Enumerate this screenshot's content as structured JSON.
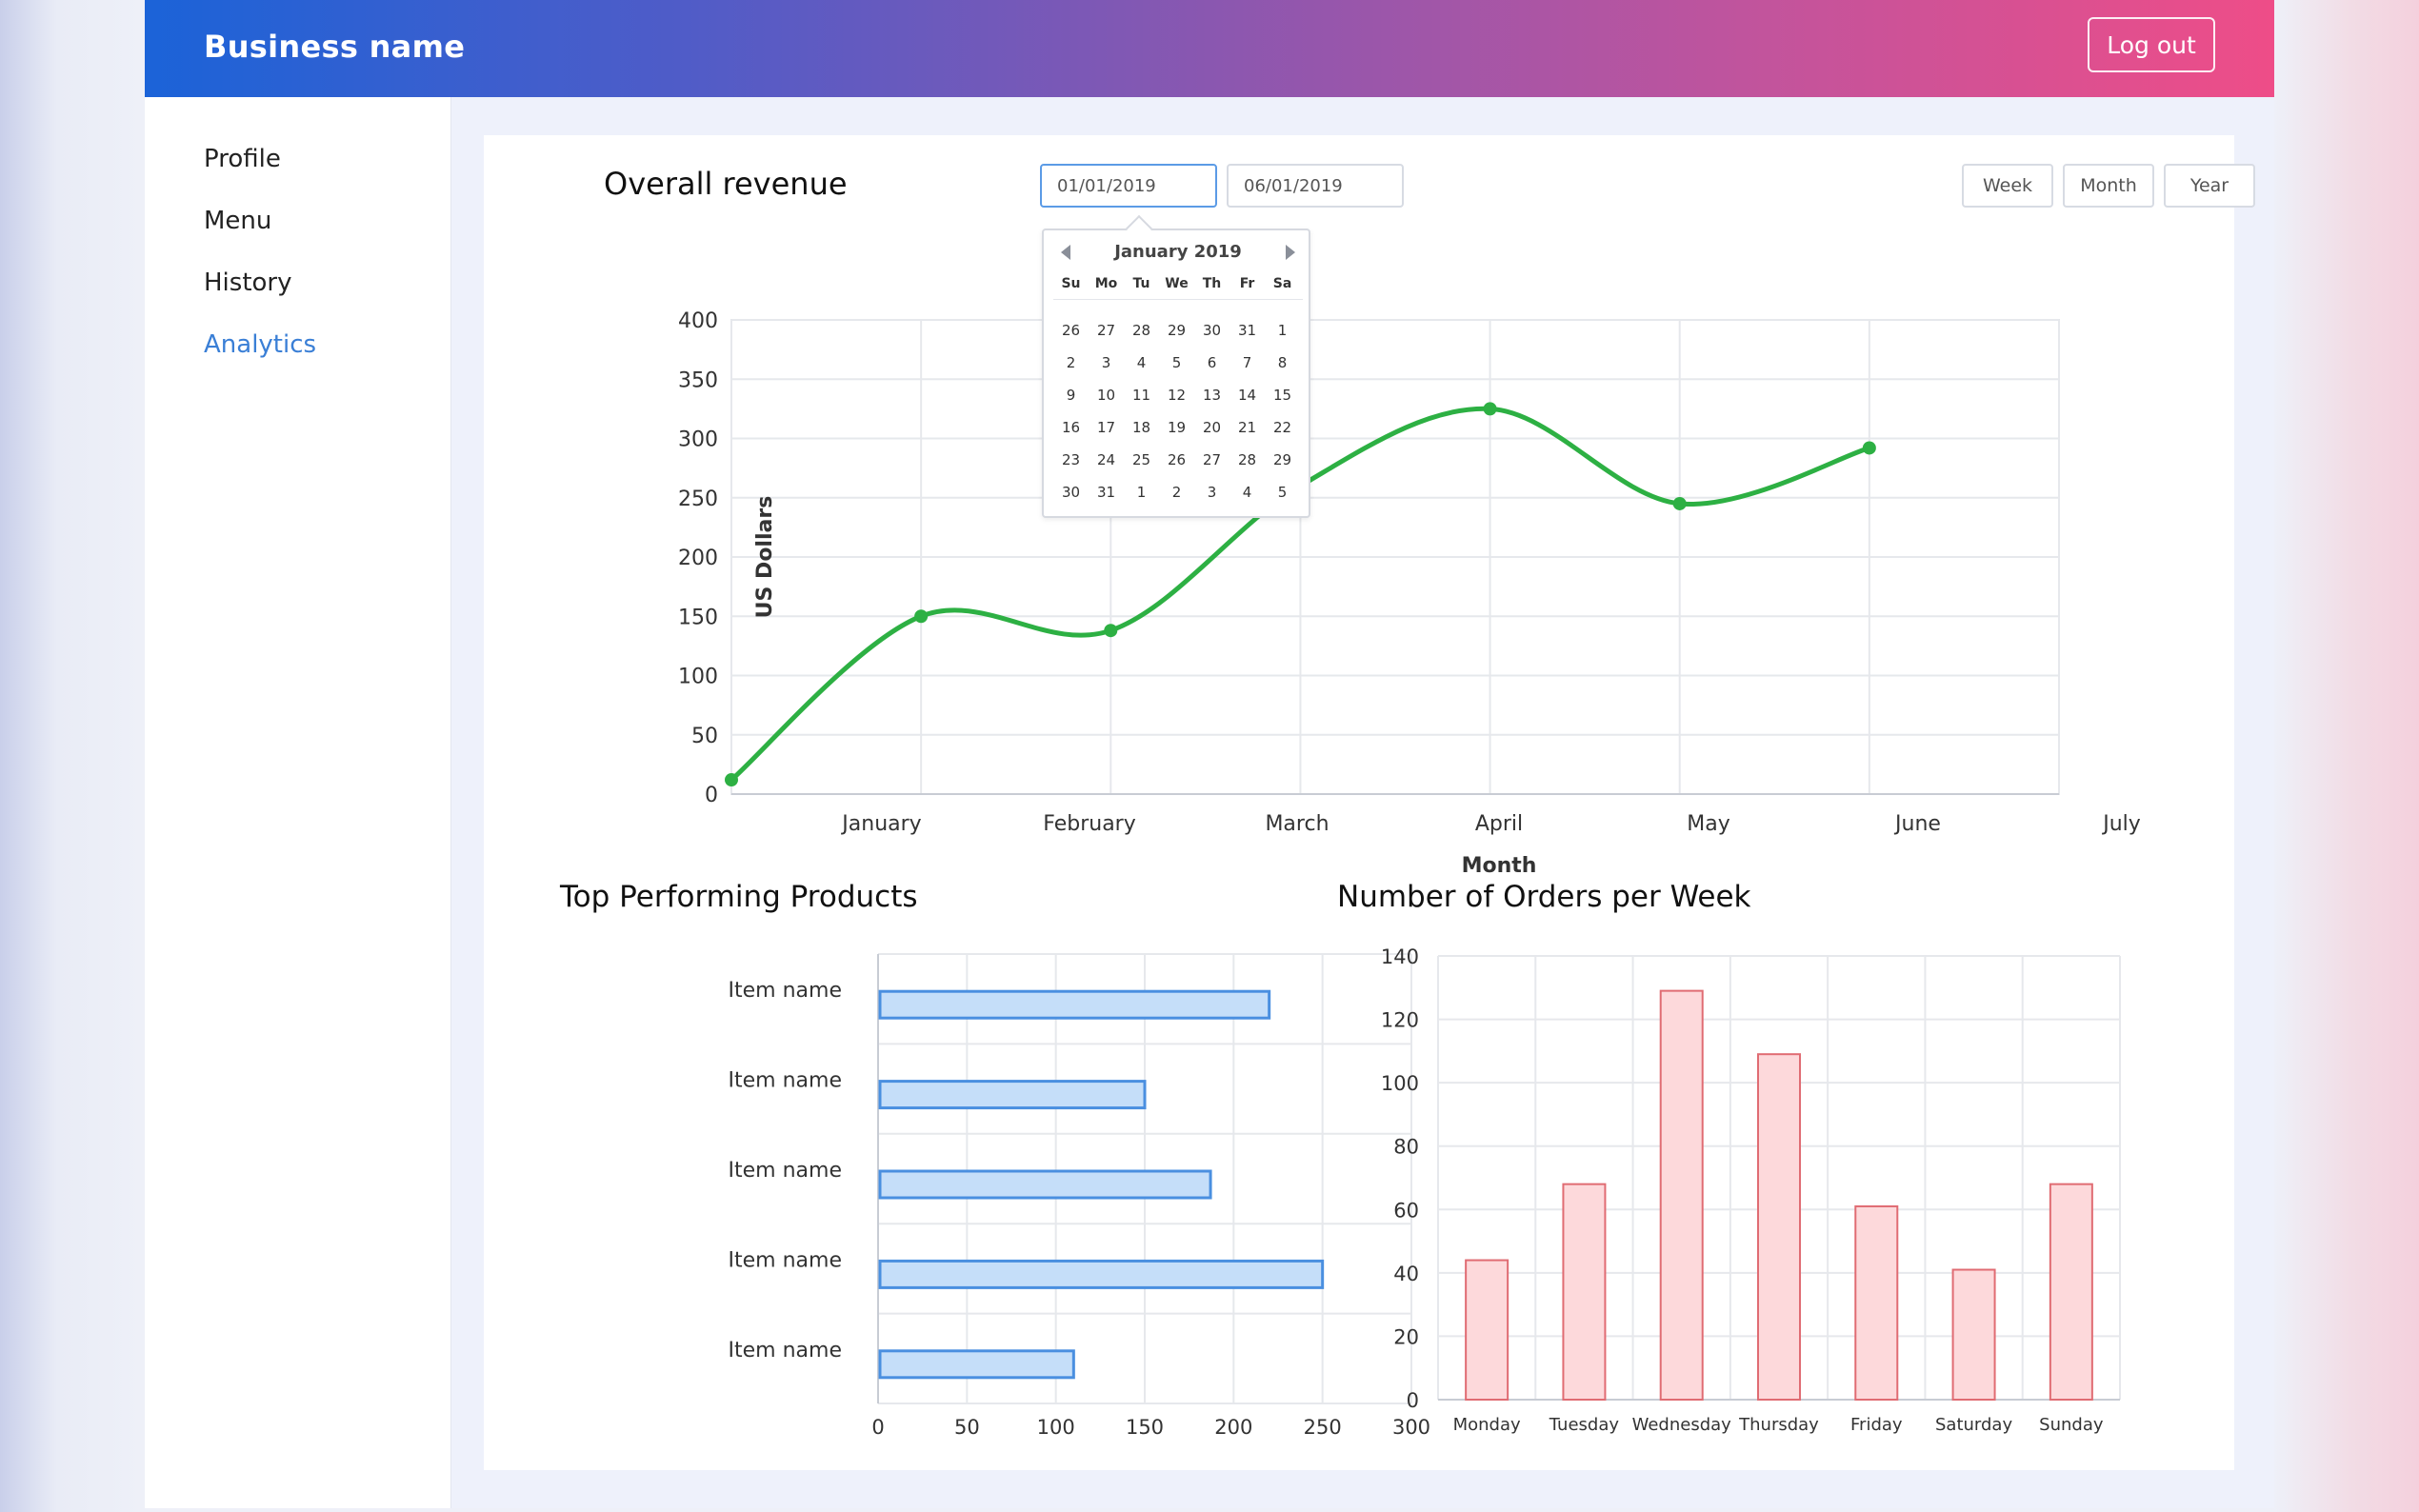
{
  "header": {
    "brand": "Business name",
    "logout_label": "Log out"
  },
  "sidebar": {
    "items": [
      {
        "label": "Profile",
        "active": false
      },
      {
        "label": "Menu",
        "active": false
      },
      {
        "label": "History",
        "active": false
      },
      {
        "label": "Analytics",
        "active": true
      }
    ]
  },
  "revenue": {
    "title": "Overall revenue",
    "date_from": "01/01/2019",
    "date_to": "06/01/2019",
    "range_buttons": [
      "Week",
      "Month",
      "Year"
    ]
  },
  "calendar": {
    "month_label": "January 2019",
    "weekdays": [
      "Su",
      "Mo",
      "Tu",
      "We",
      "Th",
      "Fr",
      "Sa"
    ],
    "weeks": [
      [
        "26",
        "27",
        "28",
        "29",
        "30",
        "31",
        "1"
      ],
      [
        "2",
        "3",
        "4",
        "5",
        "6",
        "7",
        "8"
      ],
      [
        "9",
        "10",
        "11",
        "12",
        "13",
        "14",
        "15"
      ],
      [
        "16",
        "17",
        "18",
        "19",
        "20",
        "21",
        "22"
      ],
      [
        "23",
        "24",
        "25",
        "26",
        "27",
        "28",
        "29"
      ],
      [
        "30",
        "31",
        "1",
        "2",
        "3",
        "4",
        "5"
      ]
    ]
  },
  "colors": {
    "line": "#2db043",
    "bar_blue_fill": "#c5def9",
    "bar_blue_stroke": "#4a8fe0",
    "bar_red_fill": "#fdd9db",
    "bar_red_stroke": "#e06c73",
    "link": "#3a7fd6"
  },
  "chart_data": [
    {
      "type": "line",
      "categories": [
        "January",
        "February",
        "March",
        "April",
        "May",
        "June",
        "July"
      ],
      "x": [
        0,
        1,
        2,
        3,
        4,
        5,
        6
      ],
      "values": [
        12,
        150,
        138,
        260,
        325,
        245,
        292
      ],
      "xlabel": "Month",
      "ylabel": "US Dollars",
      "ylim": [
        0,
        400
      ],
      "yticks": [
        0,
        50,
        100,
        150,
        200,
        250,
        300,
        350,
        400
      ],
      "grid": true
    },
    {
      "type": "bar",
      "orientation": "horizontal",
      "title": "Top Performing Products",
      "categories": [
        "Item name",
        "Item name",
        "Item name",
        "Item name",
        "Item name"
      ],
      "values": [
        220,
        150,
        187,
        250,
        110
      ],
      "xlim": [
        0,
        300
      ],
      "xticks": [
        0,
        50,
        100,
        150,
        200,
        250,
        300
      ],
      "grid": true
    },
    {
      "type": "bar",
      "title": "Number of Orders per Week",
      "categories": [
        "Monday",
        "Tuesday",
        "Wednesday",
        "Thursday",
        "Friday",
        "Saturday",
        "Sunday"
      ],
      "values": [
        44,
        68,
        129,
        109,
        61,
        41,
        68
      ],
      "ylim": [
        0,
        140
      ],
      "yticks": [
        0,
        20,
        40,
        60,
        80,
        100,
        120,
        140
      ],
      "grid": true
    }
  ]
}
